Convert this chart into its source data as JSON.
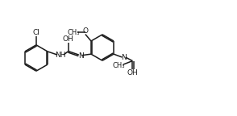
{
  "background_color": "#ffffff",
  "line_color": "#1a1a1a",
  "line_width": 1.1,
  "font_size": 6.5,
  "fig_width": 2.94,
  "fig_height": 1.44,
  "dpi": 100,
  "xlim": [
    0,
    9.0
  ],
  "ylim": [
    0,
    4.4
  ]
}
